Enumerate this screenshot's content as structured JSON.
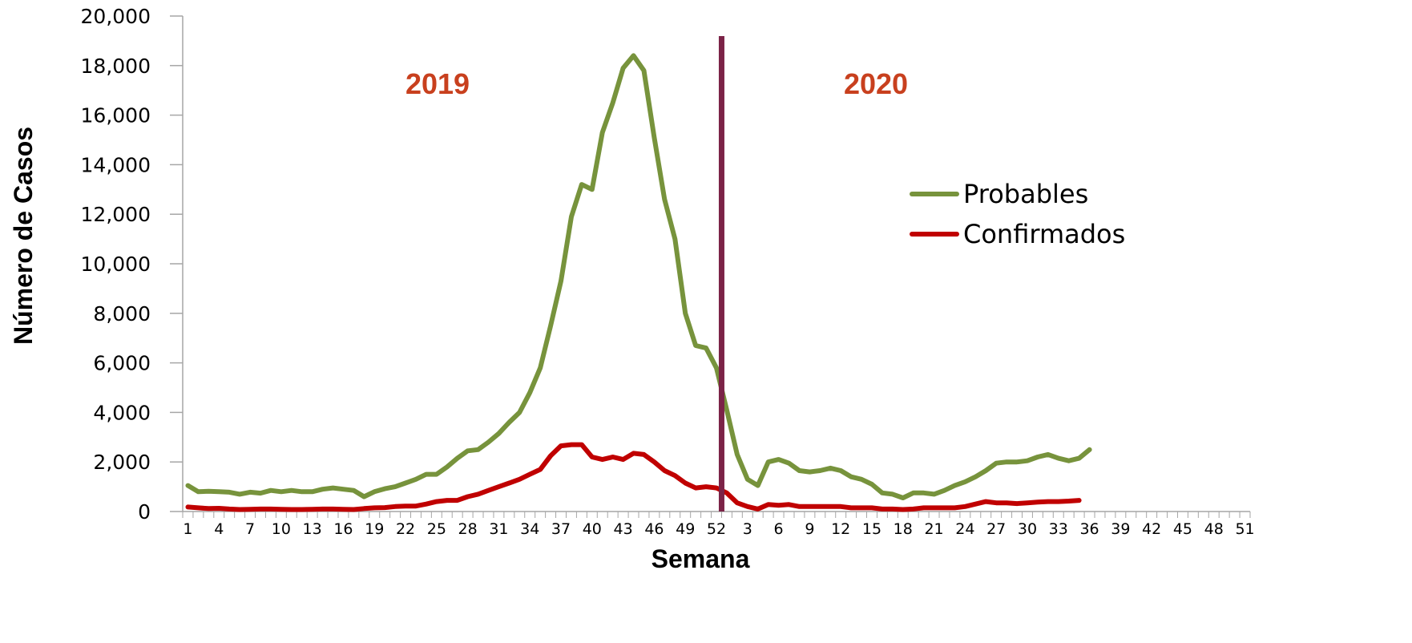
{
  "chart_data": {
    "type": "line",
    "xlabel": "Semana",
    "ylabel": "Número de Casos",
    "ylim": [
      0,
      20000
    ],
    "yticks": [
      "0",
      "2,000",
      "4,000",
      "6,000",
      "8,000",
      "10,000",
      "12,000",
      "14,000",
      "16,000",
      "18,000",
      "20,000"
    ],
    "xtick_labels": [
      "1",
      "4",
      "7",
      "10",
      "13",
      "16",
      "19",
      "22",
      "25",
      "28",
      "31",
      "34",
      "37",
      "40",
      "43",
      "46",
      "49",
      "52",
      "3",
      "6",
      "9",
      "12",
      "15",
      "18",
      "21",
      "24",
      "27",
      "30",
      "33",
      "36",
      "39",
      "42",
      "45",
      "48",
      "51"
    ],
    "annotations": [
      "2019",
      "2020"
    ],
    "divider_after_week": "52 (2019)",
    "legend_position": "right",
    "grid": false,
    "series": [
      {
        "name": "Probables",
        "color": "#77933c",
        "values": [
          1050,
          800,
          820,
          800,
          780,
          700,
          780,
          740,
          850,
          800,
          850,
          800,
          800,
          900,
          950,
          900,
          850,
          600,
          800,
          920,
          1000,
          1150,
          1300,
          1500,
          1500,
          1800,
          2150,
          2450,
          2500,
          2800,
          3150,
          3600,
          4000,
          4800,
          5800,
          7500,
          9300,
          11900,
          13200,
          13000,
          15300,
          16500,
          17900,
          18400,
          17800,
          15100,
          12600,
          11000,
          8000,
          6700,
          6600,
          5800,
          4100,
          2300,
          1300,
          1050,
          2000,
          2100,
          1950,
          1650,
          1600,
          1650,
          1750,
          1650,
          1400,
          1300,
          1100,
          750,
          700,
          550,
          750,
          750,
          700,
          850,
          1050,
          1200,
          1400,
          1650,
          1950,
          2000,
          2000,
          2050,
          2200,
          2300,
          2150,
          2050,
          2150,
          2500
        ]
      },
      {
        "name": "Confirmados",
        "color": "#c00000",
        "values": [
          180,
          150,
          120,
          130,
          100,
          80,
          90,
          100,
          100,
          90,
          80,
          80,
          90,
          100,
          100,
          90,
          80,
          120,
          150,
          160,
          200,
          220,
          220,
          300,
          400,
          450,
          450,
          600,
          700,
          850,
          1000,
          1150,
          1300,
          1500,
          1700,
          2250,
          2650,
          2700,
          2700,
          2200,
          2100,
          2200,
          2100,
          2350,
          2300,
          2000,
          1650,
          1450,
          1150,
          950,
          1000,
          950,
          750,
          350,
          200,
          100,
          280,
          250,
          280,
          200,
          200,
          200,
          200,
          200,
          150,
          150,
          150,
          100,
          100,
          80,
          100,
          150,
          150,
          150,
          150,
          200,
          300,
          400,
          350,
          350,
          320,
          350,
          380,
          400,
          400,
          420,
          450
        ]
      }
    ]
  }
}
